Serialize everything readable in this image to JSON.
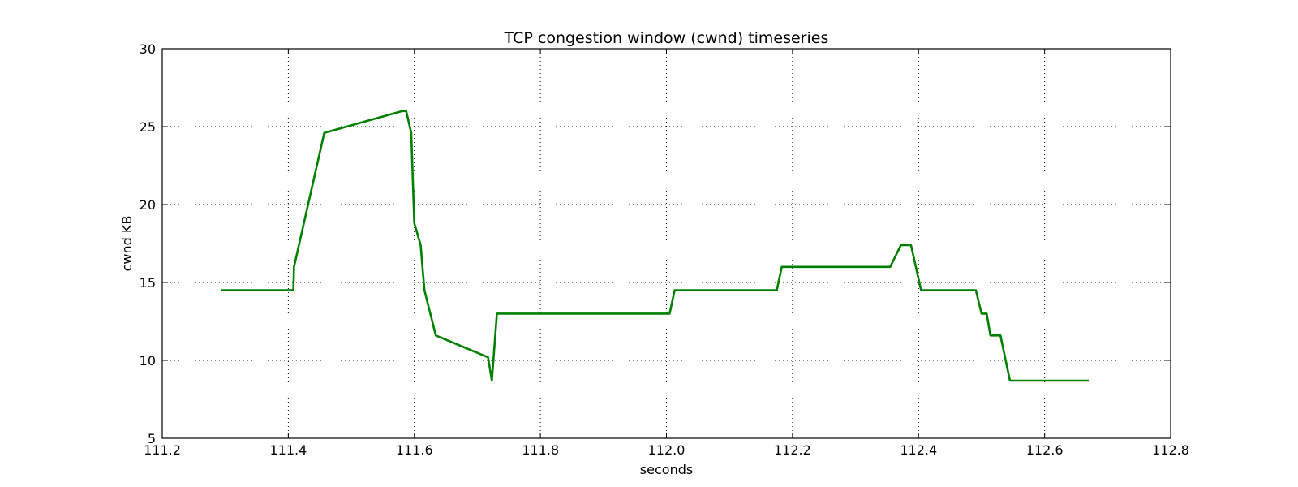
{
  "chart_data": {
    "type": "line",
    "title": "TCP congestion window (cwnd) timeseries",
    "xlabel": "seconds",
    "ylabel": "cwnd KB",
    "xlim": [
      111.2,
      112.8
    ],
    "ylim": [
      5,
      30
    ],
    "xticks": [
      111.2,
      111.4,
      111.6,
      111.8,
      112.0,
      112.2,
      112.4,
      112.6,
      112.8
    ],
    "xtick_labels": [
      "111.2",
      "111.4",
      "111.6",
      "111.8",
      "112.0",
      "112.2",
      "112.4",
      "112.6",
      "112.8"
    ],
    "yticks": [
      5,
      10,
      15,
      20,
      25,
      30
    ],
    "ytick_labels": [
      "5",
      "10",
      "15",
      "20",
      "25",
      "30"
    ],
    "grid": true,
    "series": [
      {
        "color": "#008000",
        "x": [
          111.294,
          111.408,
          111.409,
          111.457,
          111.581,
          111.587,
          111.595,
          111.6,
          111.61,
          111.616,
          111.634,
          111.717,
          111.723,
          111.731,
          112.005,
          112.013,
          112.175,
          112.183,
          112.355,
          112.372,
          112.388,
          112.404,
          112.491,
          112.5,
          112.508,
          112.514,
          112.53,
          112.545,
          112.67
        ],
        "y": [
          14.5,
          14.5,
          16.0,
          24.6,
          26.0,
          26.0,
          24.6,
          18.8,
          17.4,
          14.5,
          11.6,
          10.2,
          8.7,
          13.0,
          13.0,
          14.5,
          14.5,
          16.0,
          16.0,
          17.4,
          17.4,
          14.5,
          14.5,
          13.0,
          13.0,
          11.6,
          11.6,
          8.7,
          8.7
        ]
      }
    ]
  }
}
